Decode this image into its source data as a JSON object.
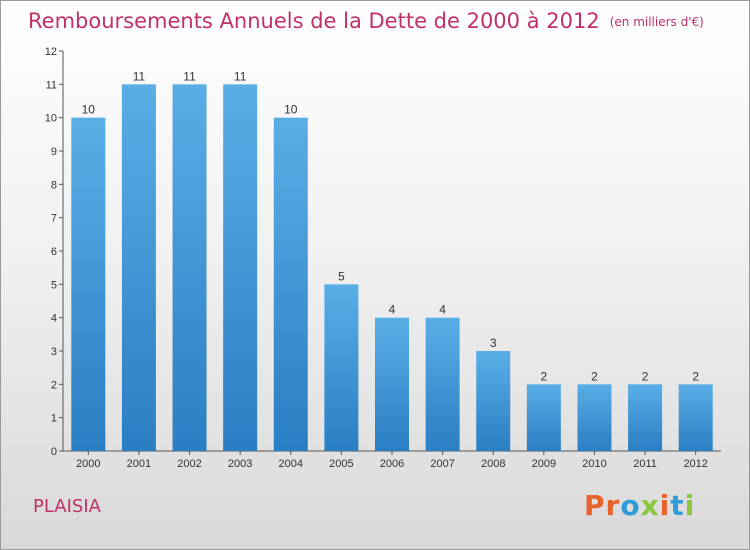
{
  "header": {
    "title": "Remboursements Annuels de la Dette de 2000 à 2012",
    "unit": "(en milliers d'€)"
  },
  "footer": {
    "commune": "PLAISIA",
    "brand": "Proxiti",
    "brand_colors": [
      "#e8622a",
      "#e8622a",
      "#2e9cd8",
      "#8cc63f",
      "#e8622a",
      "#2e9cd8",
      "#8cc63f"
    ]
  },
  "colors": {
    "title": "#c0306a",
    "bar_top": "#5aaee6",
    "bar_bottom": "#2a7ec3",
    "axis": "#555555"
  },
  "chart_data": {
    "type": "bar",
    "title": "Remboursements Annuels de la Dette de 2000 à 2012",
    "subtitle": "(en milliers d'€)",
    "categories": [
      "2000",
      "2001",
      "2002",
      "2003",
      "2004",
      "2005",
      "2006",
      "2007",
      "2008",
      "2009",
      "2010",
      "2011",
      "2012"
    ],
    "values": [
      10,
      11,
      11,
      11,
      10,
      5,
      4,
      4,
      3,
      2,
      2,
      2,
      2
    ],
    "value_labels": [
      "10",
      "11",
      "11",
      "11",
      "10",
      "5",
      "4",
      "4",
      "3",
      "2",
      "2",
      "2",
      "2"
    ],
    "y_ticks": [
      "0",
      "1",
      "2",
      "3",
      "4",
      "5",
      "6",
      "7",
      "8",
      "9",
      "10",
      "11",
      "12"
    ],
    "ylim": [
      0,
      12
    ],
    "grid": false,
    "xlabel": "",
    "ylabel": ""
  }
}
